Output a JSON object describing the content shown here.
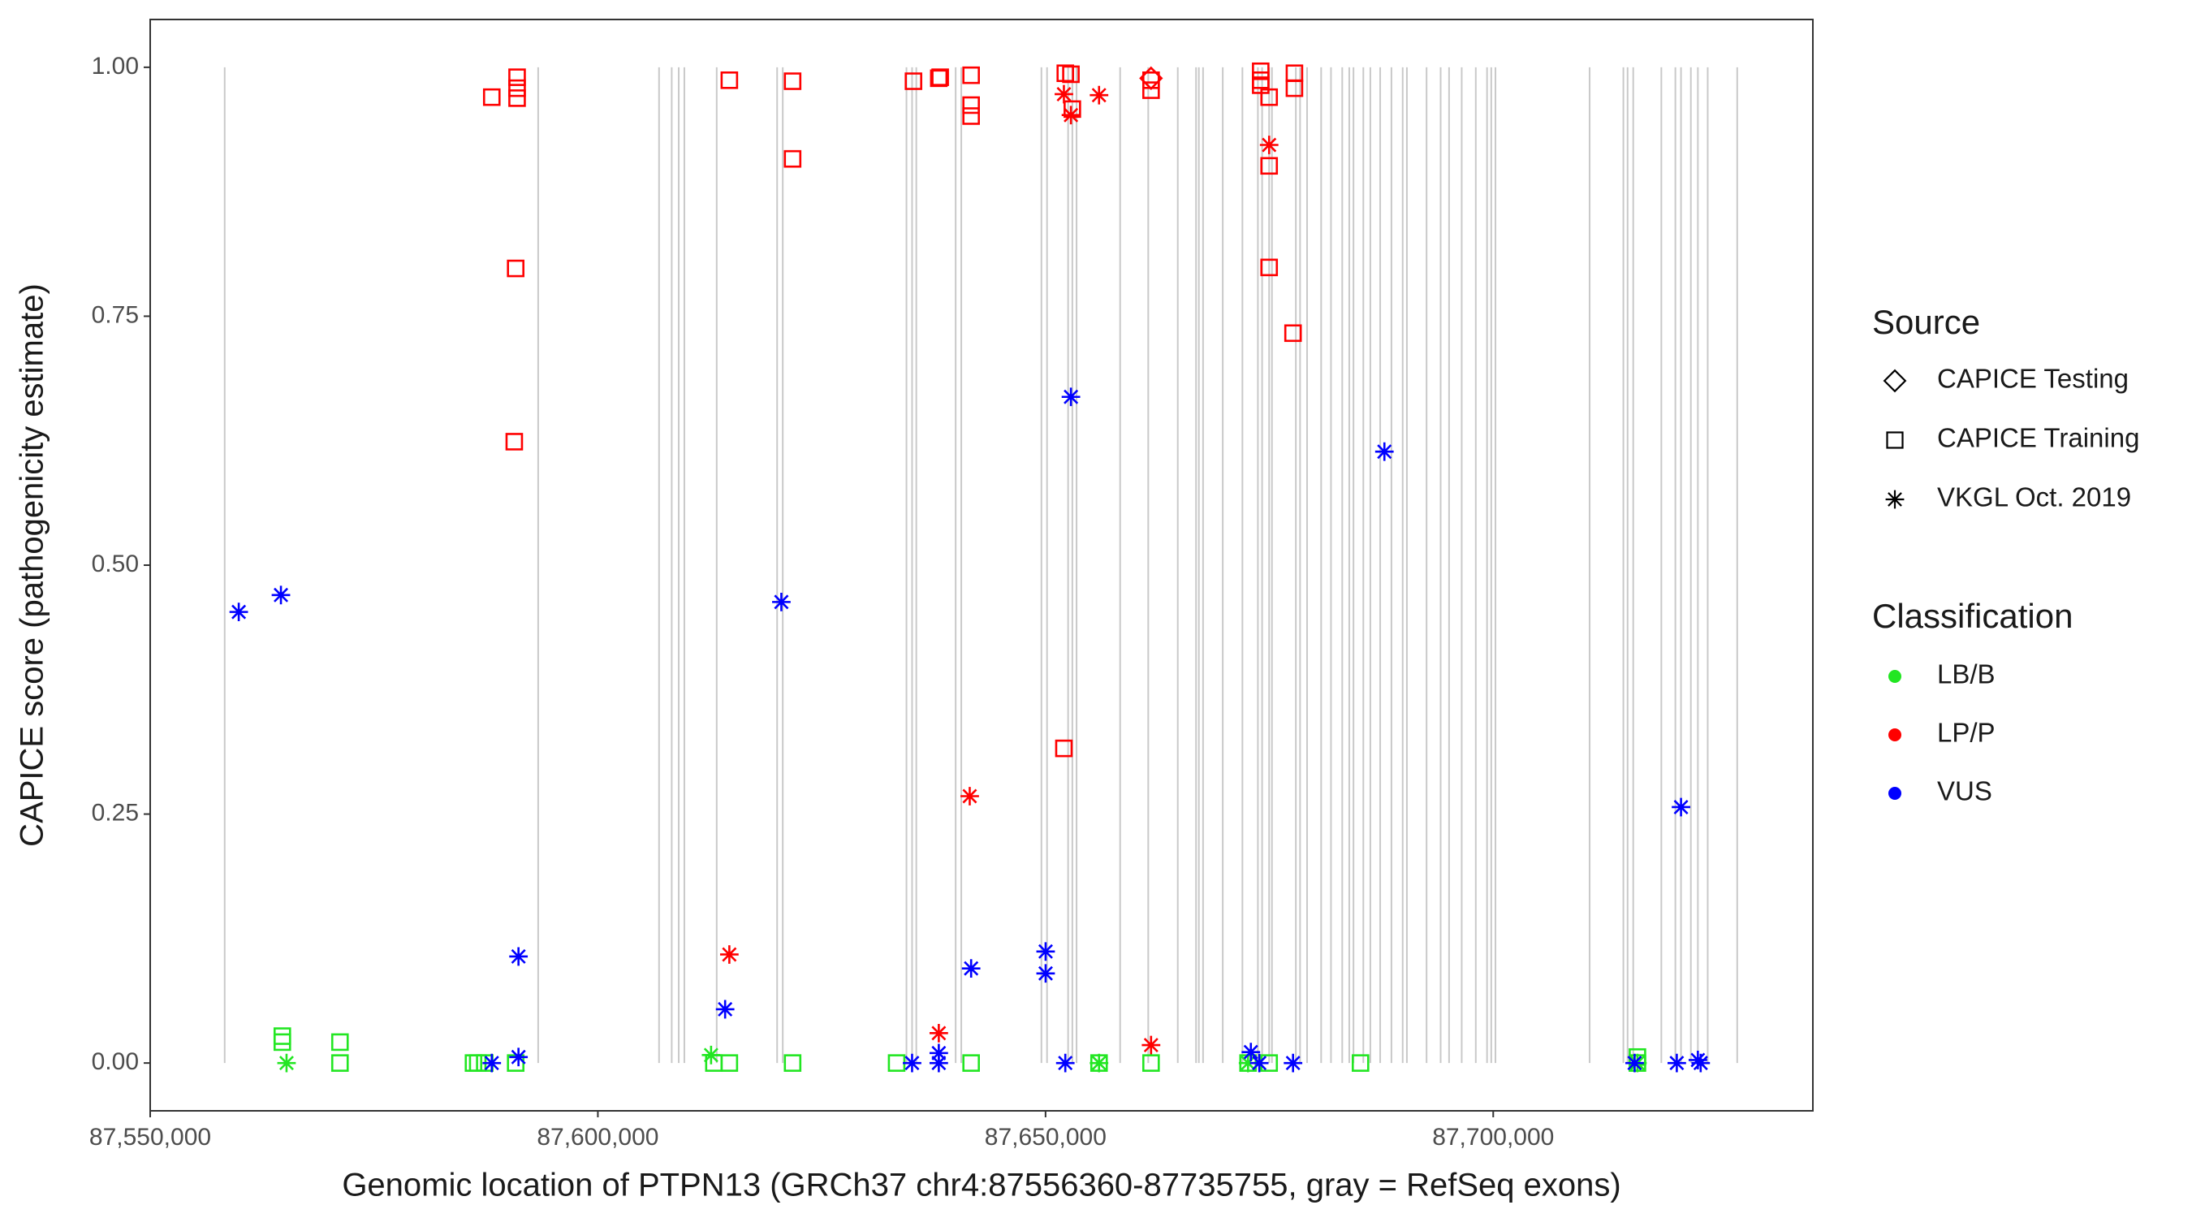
{
  "chart_data": {
    "type": "scatter",
    "x_label": "Genomic location of PTPN13 (GRCh37 chr4:87556360-87735755, gray = RefSeq exons)",
    "y_label": "CAPICE score (pathogenicity estimate)",
    "xlim": [
      87550000,
      87735700
    ],
    "ylim": [
      -0.048,
      1.048
    ],
    "xticks": [
      {
        "value": 87550000,
        "label": "87,550,000"
      },
      {
        "value": 87600000,
        "label": "87,600,000"
      },
      {
        "value": 87650000,
        "label": "87,650,000"
      },
      {
        "value": 87700000,
        "label": "87,700,000"
      }
    ],
    "yticks": [
      {
        "value": 0,
        "label": "0.00"
      },
      {
        "value": 0.25,
        "label": "0.25"
      },
      {
        "value": 0.5,
        "label": "0.50"
      },
      {
        "value": 0.75,
        "label": "0.75"
      },
      {
        "value": 1,
        "label": "1.00"
      }
    ],
    "grid": false,
    "exon_color": "#c9c9c9",
    "exons": [
      87558321,
      87593332,
      87606834,
      87608247,
      87609032,
      87609660,
      87613271,
      87620022,
      87620650,
      87634466,
      87635094,
      87635565,
      87639961,
      87640589,
      87649538,
      87650166,
      87652521,
      87652992,
      87653463,
      87658330,
      87661470,
      87664767,
      87666808,
      87667122,
      87667593,
      87669791,
      87671989,
      87673716,
      87674187,
      87674972,
      87675286,
      87677955,
      87678426,
      87679211,
      87680781,
      87681880,
      87683136,
      87683921,
      87684392,
      87685491,
      87686276,
      87687375,
      87688631,
      87689887,
      87690358,
      87692556,
      87694126,
      87695068,
      87696481,
      87698051,
      87699307,
      87699778,
      87700249,
      87710768,
      87714536,
      87715007,
      87715635,
      87718775,
      87720345,
      87720973,
      87722072,
      87722857,
      87723956,
      87727253
    ],
    "source_legend": {
      "title": "Source",
      "items": [
        {
          "name": "CAPICE Testing",
          "shape": "diamond"
        },
        {
          "name": "CAPICE Training",
          "shape": "square"
        },
        {
          "name": "VKGL Oct. 2019",
          "shape": "asterisk"
        }
      ]
    },
    "classification_legend": {
      "title": "Classification",
      "items": [
        {
          "name": "LB/B",
          "color": "#22e622"
        },
        {
          "name": "LP/P",
          "color": "#ff0000"
        },
        {
          "name": "VUS",
          "color": "#0000ff"
        }
      ]
    },
    "series": [
      {
        "source": "CAPICE Training",
        "classification": "LP/P",
        "x": [
          87588151,
          87590977,
          87590977,
          87590977,
          87590820,
          87590663,
          87614684,
          87621749,
          87621749,
          87635251,
          87638077,
          87638234,
          87641688,
          87641688,
          87641688,
          87652207,
          87652835,
          87652992,
          87652050,
          87661784,
          87661784,
          87674030,
          87674030,
          87674030,
          87674972,
          87674972,
          87674972,
          87677798,
          87677798,
          87677641
        ],
        "values": [
          0.97,
          0.99,
          0.979,
          0.969,
          0.798,
          0.624,
          0.987,
          0.986,
          0.908,
          0.986,
          0.989,
          0.99,
          0.992,
          0.962,
          0.951,
          0.994,
          0.993,
          0.958,
          0.316,
          0.987,
          0.977,
          0.996,
          0.987,
          0.982,
          0.97,
          0.901,
          0.799,
          0.994,
          0.979,
          0.733
        ]
      },
      {
        "source": "VKGL Oct. 2019",
        "classification": "LP/P",
        "x": [
          87652050,
          87652835,
          87655975,
          87674972,
          87614684,
          87641531,
          87638077,
          87661784
        ],
        "values": [
          0.973,
          0.952,
          0.972,
          0.922,
          0.109,
          0.268,
          0.03,
          0.018
        ]
      },
      {
        "source": "CAPICE Testing",
        "classification": "LP/P",
        "x": [
          87661784
        ],
        "values": [
          0.989
        ]
      },
      {
        "source": "CAPICE Training",
        "classification": "LB/B",
        "x": [
          87564758,
          87564758,
          87571195,
          87571195,
          87586110,
          87586581,
          87587366,
          87590820,
          87612957,
          87614684,
          87621749,
          87633367,
          87641688,
          87655975,
          87661784,
          87672617,
          87674972,
          87685177,
          87716106,
          87716106
        ],
        "values": [
          0.027,
          0.021,
          0.021,
          0,
          0,
          0,
          0,
          0,
          0,
          0,
          0,
          0,
          0,
          0,
          0,
          0,
          0,
          0,
          0.006,
          0
        ]
      },
      {
        "source": "VKGL Oct. 2019",
        "classification": "LB/B",
        "x": [
          87565229,
          87612643,
          87655975,
          87672617,
          87716106
        ],
        "values": [
          0,
          0.008,
          0,
          0,
          0
        ]
      },
      {
        "source": "VKGL Oct. 2019",
        "classification": "VUS",
        "x": [
          87559891,
          87564601,
          87620493,
          87591134,
          87591134,
          87588151,
          87614213,
          87635094,
          87638077,
          87638077,
          87641688,
          87650009,
          87650009,
          87652207,
          87652835,
          87687846,
          87672931,
          87673873,
          87677641,
          87715792,
          87720973,
          87720502,
          87722857,
          87723171
        ],
        "values": [
          0.453,
          0.47,
          0.463,
          0.107,
          0.006,
          0,
          0.054,
          0,
          0.01,
          0,
          0.095,
          0.112,
          0.09,
          0,
          0.669,
          0.614,
          0.011,
          0,
          0,
          0,
          0.257,
          0,
          0.003,
          0
        ]
      }
    ]
  }
}
